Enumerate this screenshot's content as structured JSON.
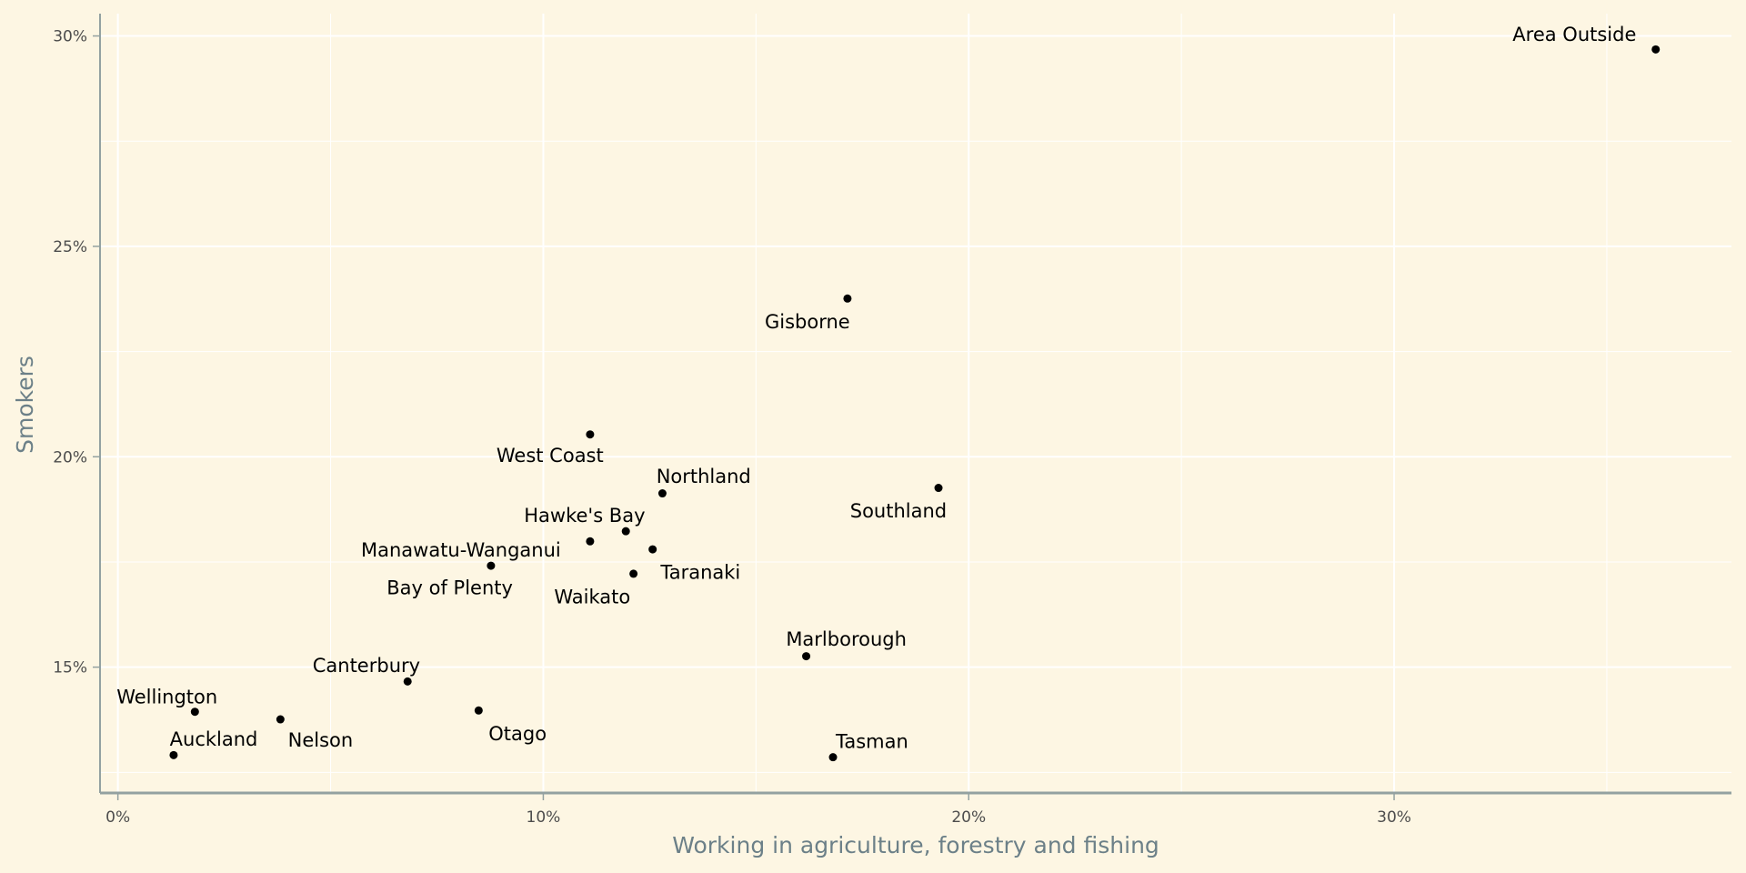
{
  "chart_data": {
    "type": "scatter",
    "title": "",
    "xlabel": "Working in agriculture, forestry and fishing",
    "ylabel": "Smokers",
    "xlim": [
      -0.42,
      37.93
    ],
    "ylim": [
      12.01,
      30.53
    ],
    "xticks": [
      0,
      10,
      20,
      30
    ],
    "xtick_labels": [
      "0%",
      "10%",
      "20%",
      "30%"
    ],
    "yticks": [
      15,
      20,
      25,
      30
    ],
    "ytick_labels": [
      "15%",
      "20%",
      "25%",
      "30%"
    ],
    "grid": true,
    "points": [
      {
        "label": "Area Outside",
        "x": 36.15,
        "y": 29.68
      },
      {
        "label": "Gisborne",
        "x": 17.15,
        "y": 23.76
      },
      {
        "label": "West Coast",
        "x": 11.1,
        "y": 20.53
      },
      {
        "label": "Northland",
        "x": 12.8,
        "y": 19.13
      },
      {
        "label": "Southland",
        "x": 19.29,
        "y": 19.26
      },
      {
        "label": "Hawke's Bay",
        "x": 11.94,
        "y": 18.23
      },
      {
        "label": "Taranaki",
        "x": 12.57,
        "y": 17.8
      },
      {
        "label": "Manawatu-Wanganui",
        "x": 11.1,
        "y": 17.99
      },
      {
        "label": "Bay of Plenty",
        "x": 8.77,
        "y": 17.41
      },
      {
        "label": "Waikato",
        "x": 12.12,
        "y": 17.22
      },
      {
        "label": "Marlborough",
        "x": 16.18,
        "y": 15.26
      },
      {
        "label": "Canterbury",
        "x": 6.81,
        "y": 14.66
      },
      {
        "label": "Otago",
        "x": 8.48,
        "y": 13.97
      },
      {
        "label": "Wellington",
        "x": 1.81,
        "y": 13.94
      },
      {
        "label": "Nelson",
        "x": 3.82,
        "y": 13.76
      },
      {
        "label": "Auckland",
        "x": 1.31,
        "y": 12.91
      },
      {
        "label": "Tasman",
        "x": 16.81,
        "y": 12.86
      }
    ]
  },
  "colors": {
    "background": "#fdf6e3",
    "axis": "#93a1a1",
    "grid": "#ffffff",
    "point": "#000000"
  }
}
